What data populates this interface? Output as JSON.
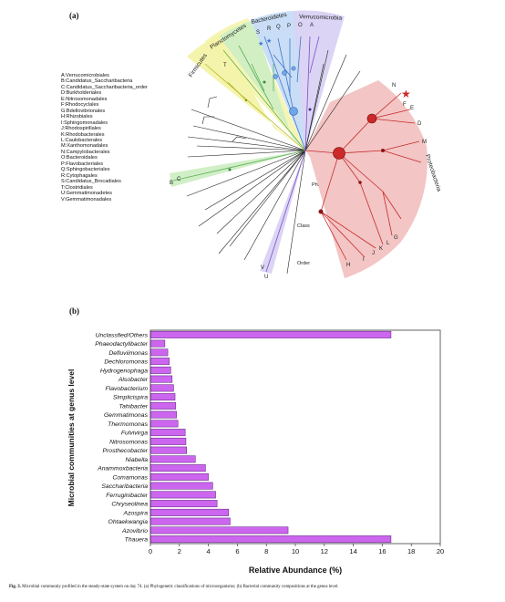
{
  "panel_a_label": "(a)",
  "panel_b_label": "(b)",
  "legend_items": [
    "A:Verrucomicrobiales",
    "B:Candidatus_Saccharibacteria",
    "C:Candidatus_Saccharibacteria_order",
    "D:Burkholderiales",
    "E:Nitrosomonadales",
    "F:Rhodocyclales",
    "G:Bdellovibrionales",
    "H:Rhizobiales",
    "I:Sphingomonadales",
    "J:Rhodospirillales",
    "K:Rhodobacterales",
    "L:Caulobacterales",
    "M:Xanthomonadales",
    "N:Campylobacterales",
    "O:Bacteroidales",
    "P:Flavobacteriales",
    "Q:Sphingobacteriales",
    "R:Cytophagales",
    "S:Candidatus_Brocadiales",
    "T:Clostridiales",
    "U:Gemmatimonadetes",
    "V:Gemmatimonadales"
  ],
  "tree": {
    "phyla": [
      "Firmicutes",
      "Planctomycetes",
      "Bacteroidetes",
      "Verrucomicrobia",
      "Proteobacteria"
    ],
    "level_labels": {
      "phylum": "Ph.",
      "class": "Class",
      "order": "Order"
    },
    "tip_letters_top": [
      "S",
      "R",
      "Q",
      "P",
      "O",
      "A"
    ],
    "tip_letter_firmicutes": "T",
    "tip_letters_left": [
      "C",
      "B"
    ],
    "tip_letters_bottom": [
      "V",
      "U"
    ],
    "tip_letters_proteo_right": [
      "N",
      "F",
      "E",
      "D",
      "M"
    ],
    "tip_letters_proteo_bottom": [
      "H",
      "I",
      "J",
      "K",
      "L",
      "G"
    ],
    "colors": {
      "firmicutes": "#f3f3a8",
      "planctomycetes": "#cdeec3",
      "bacteroidetes": "#c6dcf5",
      "verrucomicrobia": "#d9d2f3",
      "proteobacteria": "#f2c2c2",
      "green_branch": "#5cae5c",
      "blue_branch": "#3f77c9",
      "purple_branch": "#7a4fc8",
      "red_branch": "#c82a2a",
      "yellow_branch": "#cfcf3a"
    }
  },
  "chart_data": {
    "type": "bar",
    "orientation": "horizontal",
    "categories": [
      "Unclassfied/Others",
      "Phaeodactylibacter",
      "Defluviimonas",
      "Dechloromonas",
      "Hydrogenophaga",
      "Alsobacter",
      "Flavobacterium",
      "Simplicispira",
      "Tahibacter",
      "Gemmatimonas",
      "Thermomonas",
      "Fulvivirga",
      "Nitrosomonas",
      "Prosthecobacter",
      "Niabella",
      "Anammoxbacteria",
      "Comamonas",
      "Saccharibacteria",
      "Ferruginibacter",
      "Chryseolinea",
      "Azospira",
      "Ohtaekwangia",
      "Azovibrio",
      "Thauera"
    ],
    "values": [
      16.6,
      1.0,
      1.2,
      1.3,
      1.4,
      1.5,
      1.6,
      1.7,
      1.75,
      1.8,
      1.9,
      2.4,
      2.45,
      2.5,
      3.1,
      3.8,
      4.0,
      4.3,
      4.5,
      4.6,
      5.4,
      5.5,
      9.5,
      16.6
    ],
    "xlabel": "Relative Abundance (%)",
    "ylabel": "Microbial communities at genus level",
    "xlim": [
      0,
      20
    ],
    "xticks": [
      "0",
      "2",
      "4",
      "6",
      "8",
      "10",
      "12",
      "14",
      "16",
      "18",
      "20"
    ],
    "bar_color": "#cc66ee",
    "bar_edge": "#5a1a7a",
    "grid": false
  },
  "caption": {
    "label": "Fig. 3.",
    "text": "Microbial community profiled in the steady-state system on day 74. (a) Phylogenetic classifications of microorganisms; (b) Bacterial community compositions at the genus level."
  }
}
